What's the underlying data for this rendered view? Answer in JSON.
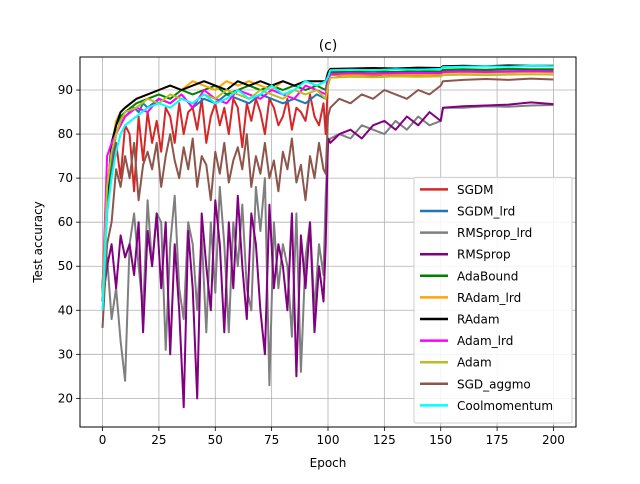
{
  "chart_data": {
    "type": "line",
    "title": "(c)",
    "xlabel": "Epoch",
    "ylabel": "Test accuracy",
    "xlim": [
      -10,
      210
    ],
    "ylim": [
      13.5,
      97.5
    ],
    "xticks": [
      0,
      25,
      50,
      75,
      100,
      125,
      150,
      175,
      200
    ],
    "yticks": [
      20,
      30,
      40,
      50,
      60,
      70,
      80,
      90
    ],
    "grid": true,
    "legend_position": "lower-right",
    "series": [
      {
        "name": "SGDM",
        "color": "#d62728",
        "x": [
          0,
          2,
          4,
          6,
          8,
          10,
          12,
          14,
          16,
          18,
          20,
          22,
          24,
          26,
          28,
          30,
          32,
          34,
          36,
          38,
          40,
          42,
          44,
          46,
          48,
          50,
          52,
          54,
          56,
          58,
          60,
          62,
          64,
          66,
          68,
          70,
          72,
          74,
          76,
          78,
          80,
          82,
          84,
          86,
          88,
          90,
          92,
          94,
          96,
          98,
          99,
          100,
          101,
          105,
          110,
          115,
          120,
          125,
          130,
          140,
          150,
          151,
          160,
          170,
          180,
          190,
          200
        ],
        "y": [
          42,
          62,
          72,
          78,
          70,
          82,
          80,
          67,
          84,
          74,
          85,
          78,
          83,
          76,
          86,
          84,
          78,
          87,
          80,
          85,
          86,
          81,
          88,
          78,
          84,
          87,
          82,
          86,
          80,
          88,
          86,
          77,
          87,
          83,
          88,
          85,
          80,
          88,
          86,
          82,
          84,
          88,
          81,
          86,
          85,
          83,
          89,
          84,
          82,
          87,
          80,
          92,
          93.5,
          93.3,
          93.6,
          93.4,
          93.2,
          93.5,
          93.3,
          93.4,
          93.6,
          94.0,
          94.0,
          94.1,
          94.0,
          94.2,
          94.1
        ]
      },
      {
        "name": "SGDM_lrd",
        "color": "#1f77b4",
        "x": [
          0,
          2,
          4,
          6,
          8,
          10,
          12,
          14,
          16,
          18,
          20,
          25,
          30,
          35,
          40,
          45,
          50,
          55,
          60,
          65,
          70,
          75,
          80,
          85,
          90,
          95,
          99,
          100,
          101,
          110,
          120,
          130,
          140,
          150,
          151,
          160,
          170,
          180,
          190,
          200
        ],
        "y": [
          45,
          63,
          74,
          80,
          83,
          84,
          85,
          86,
          85,
          87,
          86,
          88,
          87,
          89,
          86,
          88,
          87,
          89,
          88,
          87,
          89,
          88,
          87,
          88,
          87,
          89,
          88,
          93,
          94.3,
          94.1,
          94.3,
          94.0,
          94.2,
          94.1,
          94.5,
          94.6,
          94.5,
          94.7,
          94.6,
          94.6
        ]
      },
      {
        "name": "RMSprop_lrd",
        "color": "#7f7f7f",
        "x": [
          0,
          2,
          4,
          6,
          8,
          10,
          12,
          14,
          16,
          18,
          20,
          22,
          24,
          26,
          28,
          30,
          32,
          34,
          36,
          38,
          40,
          42,
          44,
          46,
          48,
          50,
          52,
          54,
          56,
          58,
          60,
          62,
          64,
          66,
          68,
          70,
          72,
          74,
          76,
          78,
          80,
          82,
          84,
          86,
          88,
          90,
          92,
          94,
          96,
          98,
          99,
          100,
          101,
          105,
          110,
          115,
          120,
          125,
          130,
          135,
          140,
          145,
          150,
          151,
          160,
          170,
          180,
          190,
          200
        ],
        "y": [
          40,
          52,
          38,
          45,
          33,
          24,
          55,
          62,
          50,
          40,
          65,
          50,
          62,
          60,
          31,
          55,
          66,
          45,
          38,
          60,
          55,
          40,
          57,
          35,
          60,
          44,
          68,
          55,
          35,
          60,
          50,
          64,
          45,
          40,
          68,
          58,
          70,
          23,
          60,
          45,
          55,
          50,
          34,
          62,
          26,
          52,
          60,
          40,
          55,
          48,
          66,
          78,
          79,
          80,
          79,
          82,
          81,
          80,
          83,
          81,
          84,
          82,
          83,
          86,
          86,
          86.3,
          86.2,
          86.5,
          86.6
        ]
      },
      {
        "name": "RMSprop",
        "color": "#800080",
        "x": [
          0,
          2,
          4,
          6,
          8,
          10,
          12,
          14,
          16,
          18,
          20,
          22,
          24,
          26,
          28,
          30,
          32,
          34,
          36,
          38,
          40,
          42,
          44,
          46,
          48,
          50,
          52,
          54,
          56,
          58,
          60,
          62,
          64,
          66,
          68,
          70,
          72,
          74,
          76,
          78,
          80,
          82,
          84,
          86,
          88,
          90,
          92,
          94,
          96,
          98,
          99,
          100,
          101,
          105,
          110,
          115,
          120,
          125,
          130,
          135,
          140,
          145,
          150,
          151,
          160,
          170,
          180,
          190,
          200
        ],
        "y": [
          42,
          50,
          55,
          45,
          57,
          52,
          55,
          48,
          60,
          35,
          58,
          50,
          62,
          45,
          60,
          30,
          55,
          40,
          18,
          58,
          45,
          20,
          62,
          50,
          40,
          65,
          55,
          35,
          60,
          45,
          66,
          50,
          38,
          62,
          55,
          40,
          30,
          64,
          45,
          55,
          50,
          40,
          62,
          25,
          57,
          45,
          60,
          35,
          50,
          42,
          55,
          79,
          78,
          80,
          81,
          79,
          82,
          83,
          81,
          84,
          82,
          85,
          83,
          86,
          86.3,
          86.5,
          86.7,
          87.2,
          86.8
        ]
      },
      {
        "name": "AdaBound",
        "color": "#008000",
        "x": [
          0,
          2,
          4,
          6,
          8,
          10,
          15,
          20,
          25,
          30,
          35,
          40,
          45,
          50,
          55,
          60,
          65,
          70,
          75,
          80,
          85,
          90,
          95,
          99,
          100,
          101,
          110,
          120,
          130,
          140,
          150,
          151,
          160,
          170,
          180,
          190,
          200
        ],
        "y": [
          44,
          65,
          76,
          82,
          84,
          85,
          87,
          88,
          89,
          88,
          90,
          89,
          90,
          91,
          89,
          90,
          91,
          90,
          91,
          90,
          91,
          90,
          91,
          90,
          93,
          94.0,
          94.1,
          94.2,
          94.1,
          94.3,
          94.2,
          94.6,
          94.7,
          94.6,
          94.8,
          94.7,
          94.7
        ]
      },
      {
        "name": "RAdam_lrd",
        "color": "#ffa500",
        "x": [
          0,
          2,
          4,
          6,
          8,
          10,
          15,
          20,
          25,
          30,
          35,
          40,
          45,
          50,
          55,
          60,
          65,
          70,
          75,
          80,
          85,
          90,
          95,
          99,
          100,
          101,
          110,
          120,
          130,
          140,
          150,
          151,
          160,
          170,
          180,
          190,
          200
        ],
        "y": [
          46,
          67,
          77,
          83,
          85,
          86,
          88,
          89,
          90,
          91,
          90,
          92,
          91,
          90,
          92,
          91,
          92,
          91,
          90,
          92,
          91,
          92,
          91,
          92,
          93,
          93.5,
          93.4,
          93.5,
          93.6,
          93.5,
          93.6,
          93.9,
          94.0,
          93.9,
          94.0,
          94.1,
          94.0
        ]
      },
      {
        "name": "RAdam",
        "color": "#000000",
        "x": [
          0,
          2,
          4,
          6,
          8,
          10,
          15,
          20,
          25,
          30,
          35,
          40,
          45,
          50,
          55,
          60,
          65,
          70,
          75,
          80,
          85,
          90,
          95,
          99,
          100,
          101,
          110,
          120,
          130,
          140,
          150,
          151,
          160,
          170,
          180,
          190,
          200
        ],
        "y": [
          45,
          66,
          78,
          82,
          85,
          86,
          88,
          89,
          90,
          91,
          90,
          91,
          92,
          91,
          90,
          92,
          91,
          92,
          91,
          92,
          91,
          92,
          92,
          92,
          94,
          94.8,
          94.9,
          95.0,
          94.9,
          95.1,
          95.0,
          95.4,
          95.5,
          95.4,
          95.6,
          95.5,
          95.5
        ]
      },
      {
        "name": "Adam_lrd",
        "color": "#ff00ff",
        "x": [
          0,
          2,
          4,
          6,
          8,
          10,
          15,
          20,
          25,
          30,
          35,
          40,
          45,
          50,
          55,
          60,
          65,
          70,
          75,
          80,
          85,
          90,
          95,
          99,
          100,
          101,
          110,
          120,
          130,
          140,
          150,
          151,
          160,
          170,
          180,
          190,
          200
        ],
        "y": [
          44,
          75,
          78,
          80,
          82,
          84,
          86,
          85,
          88,
          87,
          89,
          86,
          90,
          88,
          87,
          90,
          89,
          88,
          90,
          89,
          88,
          91,
          90,
          89,
          92,
          93.6,
          93.8,
          93.7,
          93.8,
          93.9,
          93.8,
          94.1,
          94.2,
          94.1,
          94.2,
          94.3,
          94.2
        ]
      },
      {
        "name": "Adam",
        "color": "#bcbd22",
        "x": [
          0,
          2,
          4,
          6,
          8,
          10,
          15,
          20,
          25,
          30,
          35,
          40,
          45,
          50,
          55,
          60,
          65,
          70,
          75,
          80,
          85,
          90,
          95,
          99,
          100,
          101,
          110,
          120,
          130,
          140,
          150,
          151,
          160,
          170,
          180,
          190,
          200
        ],
        "y": [
          43,
          68,
          76,
          80,
          83,
          85,
          86,
          88,
          87,
          89,
          88,
          87,
          89,
          88,
          90,
          89,
          88,
          90,
          89,
          88,
          90,
          89,
          90,
          88,
          91,
          92.8,
          93.0,
          92.9,
          93.1,
          93.0,
          93.1,
          93.4,
          93.5,
          93.4,
          93.5,
          93.6,
          93.5
        ]
      },
      {
        "name": "SGD_aggmo",
        "color": "#8c564b",
        "x": [
          0,
          2,
          4,
          6,
          8,
          10,
          12,
          14,
          16,
          18,
          20,
          22,
          24,
          26,
          28,
          30,
          32,
          34,
          36,
          38,
          40,
          42,
          44,
          46,
          48,
          50,
          52,
          54,
          56,
          58,
          60,
          62,
          64,
          66,
          68,
          70,
          72,
          74,
          76,
          78,
          80,
          82,
          84,
          86,
          88,
          90,
          92,
          94,
          96,
          98,
          99,
          100,
          101,
          105,
          110,
          115,
          120,
          125,
          130,
          135,
          140,
          145,
          150,
          151,
          160,
          170,
          180,
          190,
          200
        ],
        "y": [
          36,
          55,
          60,
          72,
          68,
          75,
          70,
          78,
          65,
          73,
          76,
          72,
          78,
          68,
          75,
          80,
          74,
          70,
          77,
          72,
          79,
          68,
          75,
          73,
          65,
          76,
          71,
          78,
          69,
          74,
          77,
          72,
          80,
          68,
          75,
          71,
          78,
          70,
          74,
          67,
          76,
          72,
          79,
          69,
          73,
          65,
          75,
          70,
          78,
          72,
          71,
          84,
          86,
          88,
          87,
          89,
          88,
          90,
          89,
          88,
          90,
          89,
          91,
          92,
          92.3,
          92.5,
          92.3,
          92.6,
          92.4
        ]
      },
      {
        "name": "Coolmomentum",
        "color": "#00ffff",
        "x": [
          0,
          2,
          4,
          6,
          8,
          10,
          15,
          20,
          25,
          30,
          35,
          40,
          45,
          50,
          55,
          60,
          65,
          70,
          75,
          80,
          85,
          90,
          95,
          99,
          100,
          101,
          110,
          120,
          130,
          140,
          150,
          151,
          160,
          170,
          180,
          190,
          200
        ],
        "y": [
          40,
          62,
          70,
          76,
          80,
          82,
          84,
          86,
          87,
          86,
          88,
          87,
          89,
          87,
          88,
          90,
          88,
          89,
          91,
          89,
          90,
          92,
          91,
          92,
          93,
          94.5,
          94.6,
          94.5,
          94.7,
          94.6,
          94.8,
          95.2,
          95.3,
          95.4,
          95.3,
          95.5,
          95.4
        ]
      }
    ]
  }
}
